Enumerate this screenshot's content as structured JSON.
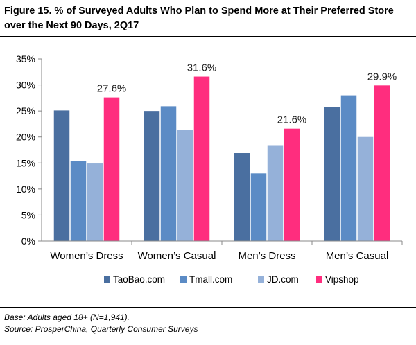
{
  "title": "Figure 15. % of Surveyed Adults Who Plan to Spend More at Their Preferred Store over the Next 90 Days, 2Q17",
  "notes": {
    "base": "Base: Adults aged 18+ (N=1,941).",
    "source": "Source: ProsperChina, Quarterly Consumer Surveys"
  },
  "chart_data": {
    "type": "bar",
    "title": "Figure 15. % of Surveyed Adults Who Plan to Spend More at Their Preferred Store over the Next 90 Days, 2Q17",
    "xlabel": "",
    "ylabel": "",
    "ylim": [
      0,
      35
    ],
    "yticks": [
      "0%",
      "5%",
      "10%",
      "15%",
      "20%",
      "25%",
      "30%",
      "35%"
    ],
    "grid": false,
    "legend_position": "bottom",
    "categories": [
      "Women’s Dress",
      "Women’s Casual",
      "Men’s Dress",
      "Men’s Casual"
    ],
    "series": [
      {
        "name": "TaoBao.com",
        "color": "#4a6fa0",
        "values": [
          25.1,
          25.0,
          16.9,
          25.8
        ]
      },
      {
        "name": "Tmall.com",
        "color": "#5b8bc5",
        "values": [
          15.4,
          25.9,
          13.0,
          28.0
        ]
      },
      {
        "name": "JD.com",
        "color": "#95b1d9",
        "values": [
          14.9,
          21.3,
          18.3,
          20.0
        ]
      },
      {
        "name": "Vipshop",
        "color": "#ff2d7e",
        "values": [
          27.6,
          31.6,
          21.6,
          29.9
        ]
      }
    ],
    "data_labels": [
      "27.6%",
      "31.6%",
      "21.6%",
      "29.9%"
    ]
  }
}
